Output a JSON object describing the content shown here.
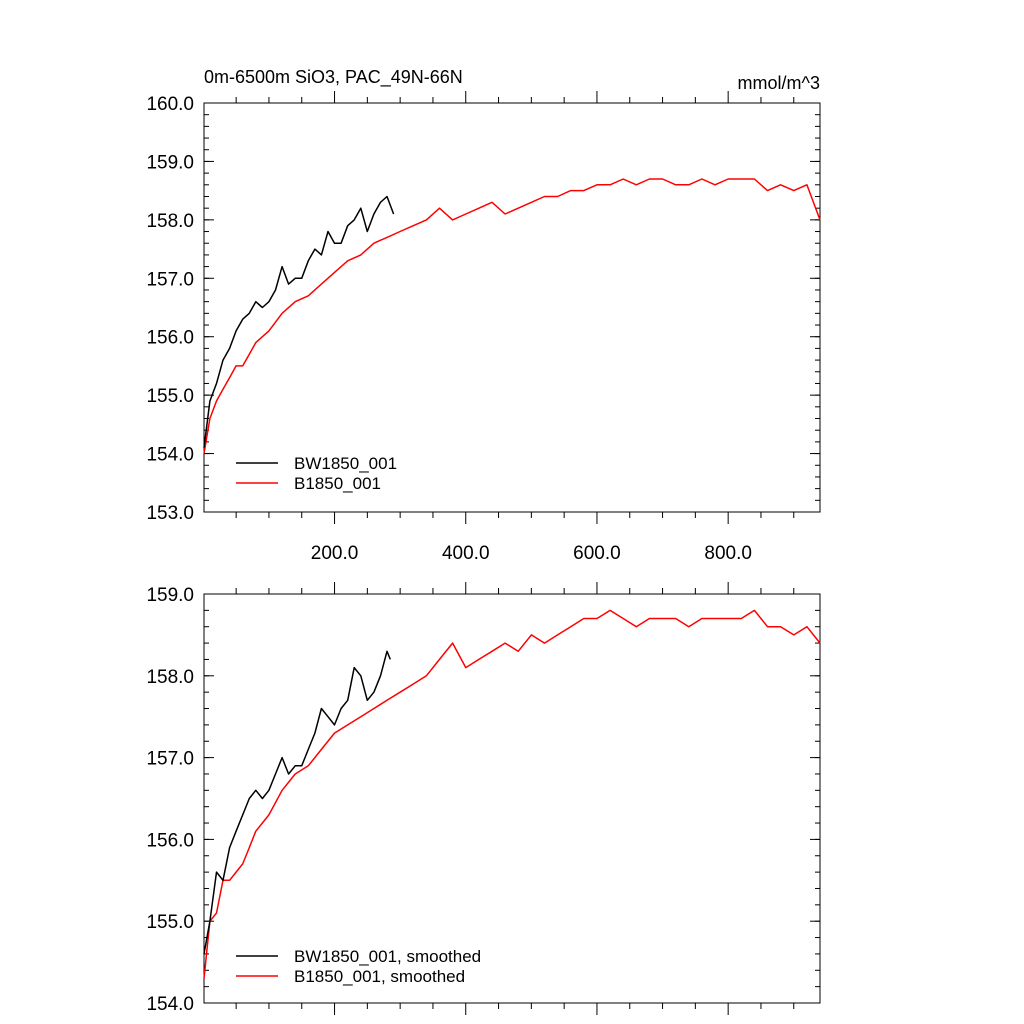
{
  "figure": {
    "title_left": "0m-6500m SiO3, PAC_49N-66N",
    "title_right": "mmol/m^3"
  },
  "chart_data": [
    {
      "type": "line",
      "xlim": [
        1,
        940
      ],
      "ylim": [
        153.0,
        160.0
      ],
      "x_ticks": [
        200,
        400,
        600,
        800
      ],
      "x_tick_labels": [
        "200.0",
        "400.0",
        "600.0",
        "800.0"
      ],
      "y_ticks": [
        153,
        154,
        155,
        156,
        157,
        158,
        159,
        160
      ],
      "y_tick_labels": [
        "153.0",
        "154.0",
        "155.0",
        "156.0",
        "157.0",
        "158.0",
        "159.0",
        "160.0"
      ],
      "xlabel": "",
      "ylabel": "",
      "legend": [
        "BW1850_001",
        "B1850_001"
      ],
      "series": [
        {
          "name": "BW1850_001",
          "color": "#000000",
          "x": [
            1,
            10,
            20,
            30,
            40,
            50,
            60,
            70,
            80,
            90,
            100,
            110,
            120,
            130,
            140,
            150,
            160,
            170,
            180,
            190,
            200,
            210,
            220,
            230,
            240,
            250,
            260,
            270,
            280,
            290
          ],
          "y": [
            154.1,
            154.9,
            155.2,
            155.6,
            155.8,
            156.1,
            156.3,
            156.4,
            156.6,
            156.5,
            156.6,
            156.8,
            157.2,
            156.9,
            157.0,
            157.0,
            157.3,
            157.5,
            157.4,
            157.8,
            157.6,
            157.6,
            157.9,
            158.0,
            158.2,
            157.8,
            158.1,
            158.3,
            158.4,
            158.1
          ]
        },
        {
          "name": "B1850_001",
          "color": "#ff0000",
          "x": [
            1,
            10,
            20,
            30,
            40,
            50,
            60,
            70,
            80,
            90,
            100,
            120,
            140,
            160,
            180,
            200,
            220,
            240,
            260,
            280,
            300,
            320,
            340,
            360,
            380,
            400,
            420,
            440,
            460,
            480,
            500,
            520,
            540,
            560,
            580,
            600,
            620,
            640,
            660,
            680,
            700,
            720,
            740,
            760,
            780,
            800,
            820,
            840,
            860,
            880,
            900,
            920,
            940
          ],
          "y": [
            154.0,
            154.6,
            154.9,
            155.1,
            155.3,
            155.5,
            155.5,
            155.7,
            155.9,
            156.0,
            156.1,
            156.4,
            156.6,
            156.7,
            156.9,
            157.1,
            157.3,
            157.4,
            157.6,
            157.7,
            157.8,
            157.9,
            158.0,
            158.2,
            158.0,
            158.1,
            158.2,
            158.3,
            158.1,
            158.2,
            158.3,
            158.4,
            158.4,
            158.5,
            158.5,
            158.6,
            158.6,
            158.7,
            158.6,
            158.7,
            158.7,
            158.6,
            158.6,
            158.7,
            158.6,
            158.7,
            158.7,
            158.7,
            158.5,
            158.6,
            158.5,
            158.6,
            158.0
          ]
        }
      ]
    },
    {
      "type": "line",
      "xlim": [
        1,
        940
      ],
      "ylim": [
        154.0,
        159.0
      ],
      "y_ticks": [
        154,
        155,
        156,
        157,
        158,
        159
      ],
      "y_tick_labels": [
        "154.0",
        "155.0",
        "156.0",
        "157.0",
        "158.0",
        "159.0"
      ],
      "xlabel": "",
      "ylabel": "",
      "legend": [
        "BW1850_001, smoothed",
        "B1850_001, smoothed"
      ],
      "series": [
        {
          "name": "BW1850_001, smoothed",
          "color": "#000000",
          "x": [
            1,
            10,
            20,
            30,
            40,
            50,
            60,
            70,
            80,
            90,
            100,
            110,
            120,
            130,
            140,
            150,
            160,
            170,
            180,
            190,
            200,
            210,
            220,
            230,
            240,
            250,
            260,
            270,
            280,
            285
          ],
          "y": [
            154.6,
            155.0,
            155.6,
            155.5,
            155.9,
            156.1,
            156.3,
            156.5,
            156.6,
            156.5,
            156.6,
            156.8,
            157.0,
            156.8,
            156.9,
            156.9,
            157.1,
            157.3,
            157.6,
            157.5,
            157.4,
            157.6,
            157.7,
            158.1,
            158.0,
            157.7,
            157.8,
            158.0,
            158.3,
            158.2
          ]
        },
        {
          "name": "B1850_001, smoothed",
          "color": "#ff0000",
          "x": [
            1,
            10,
            20,
            30,
            40,
            50,
            60,
            70,
            80,
            90,
            100,
            120,
            140,
            160,
            180,
            200,
            220,
            240,
            260,
            280,
            300,
            320,
            340,
            360,
            380,
            400,
            420,
            440,
            460,
            480,
            500,
            520,
            540,
            560,
            580,
            600,
            620,
            640,
            660,
            680,
            700,
            720,
            740,
            760,
            780,
            800,
            820,
            840,
            860,
            880,
            900,
            920,
            940
          ],
          "y": [
            154.3,
            155.0,
            155.1,
            155.5,
            155.5,
            155.6,
            155.7,
            155.9,
            156.1,
            156.2,
            156.3,
            156.6,
            156.8,
            156.9,
            157.1,
            157.3,
            157.4,
            157.5,
            157.6,
            157.7,
            157.8,
            157.9,
            158.0,
            158.2,
            158.4,
            158.1,
            158.2,
            158.3,
            158.4,
            158.3,
            158.5,
            158.4,
            158.5,
            158.6,
            158.7,
            158.7,
            158.8,
            158.7,
            158.6,
            158.7,
            158.7,
            158.7,
            158.6,
            158.7,
            158.7,
            158.7,
            158.7,
            158.8,
            158.6,
            158.6,
            158.5,
            158.6,
            158.4
          ]
        }
      ]
    }
  ]
}
